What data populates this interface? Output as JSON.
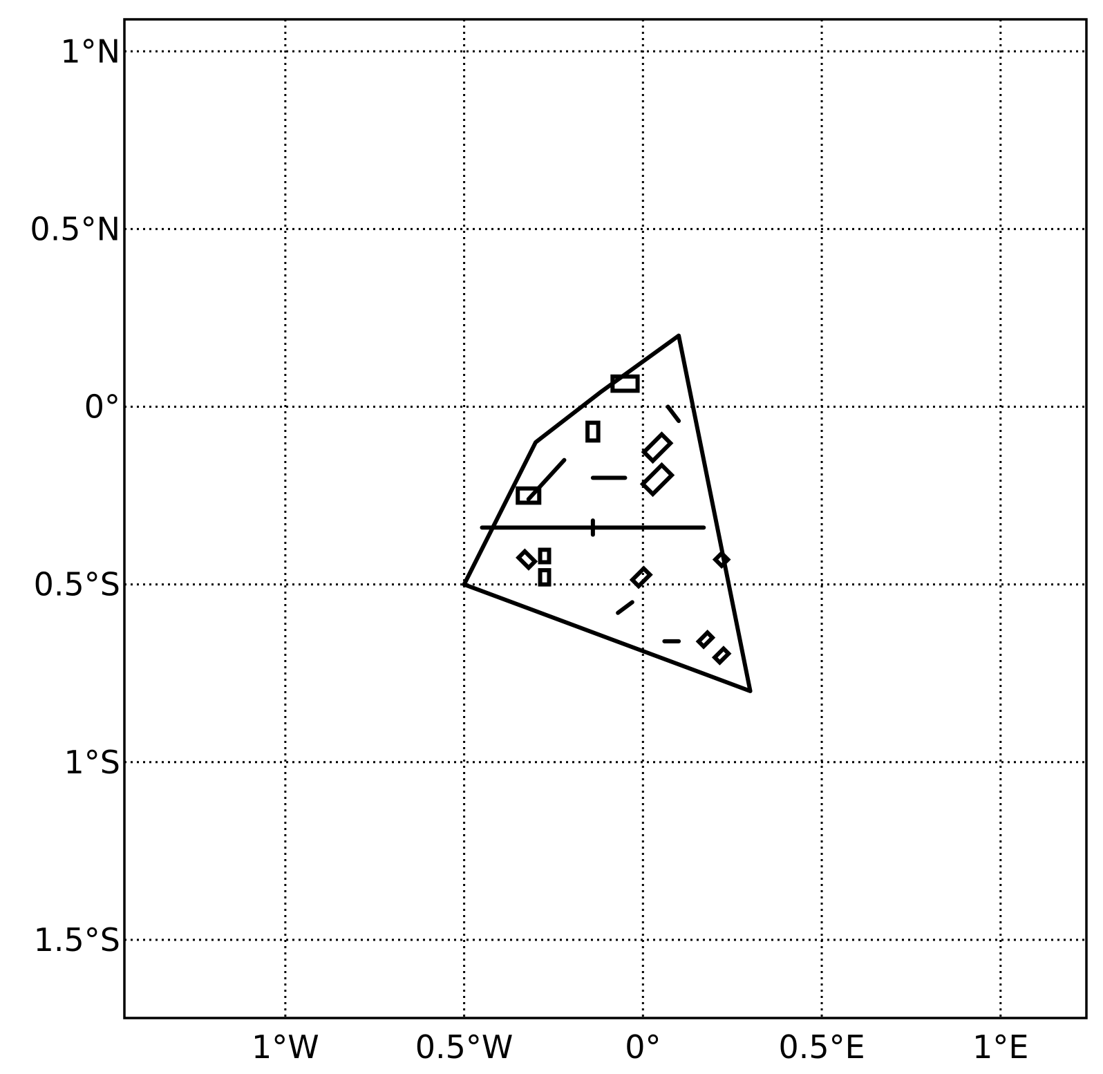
{
  "map": {
    "extent": {
      "lon": [
        -1.45,
        1.24
      ],
      "lat": [
        -1.72,
        1.09
      ]
    },
    "grid": {
      "on": true,
      "style": "dotted"
    },
    "x_ticks": [
      {
        "value": -1.0,
        "label": "1°W"
      },
      {
        "value": -0.5,
        "label": "0.5°W"
      },
      {
        "value": 0.0,
        "label": "0°"
      },
      {
        "value": 0.5,
        "label": "0.5°E"
      },
      {
        "value": 1.0,
        "label": "1°E"
      }
    ],
    "y_ticks": [
      {
        "value": 1.0,
        "label": "1°N"
      },
      {
        "value": 0.5,
        "label": "0.5°N"
      },
      {
        "value": 0.0,
        "label": "0°"
      },
      {
        "value": -0.5,
        "label": "0.5°S"
      },
      {
        "value": -1.0,
        "label": "1°S"
      },
      {
        "value": -1.5,
        "label": "1.5°S"
      }
    ],
    "outline": [
      [
        0.1,
        0.2
      ],
      [
        0.3,
        -0.8
      ],
      [
        -0.5,
        -0.5
      ],
      [
        -0.3,
        -0.1
      ],
      [
        -0.12,
        0.04
      ]
    ],
    "lines": [
      [
        [
          -0.45,
          -0.34
        ],
        [
          0.17,
          -0.34
        ]
      ],
      [
        [
          -0.14,
          -0.32
        ],
        [
          -0.14,
          -0.36
        ]
      ],
      [
        [
          -0.32,
          -0.26
        ],
        [
          -0.22,
          -0.15
        ]
      ],
      [
        [
          -0.14,
          -0.2
        ],
        [
          -0.05,
          -0.2
        ]
      ],
      [
        [
          0.07,
          0.0
        ],
        [
          0.1,
          -0.04
        ]
      ],
      [
        [
          -0.07,
          -0.58
        ],
        [
          -0.03,
          -0.55
        ]
      ],
      [
        [
          0.06,
          -0.66
        ],
        [
          0.1,
          -0.66
        ]
      ]
    ],
    "rects": [
      {
        "center": [
          -0.05,
          0.065
        ],
        "size": [
          0.07,
          0.04
        ],
        "angle": 0
      },
      {
        "center": [
          -0.14,
          -0.07
        ],
        "size": [
          0.03,
          0.05
        ],
        "angle": 0
      },
      {
        "center": [
          -0.32,
          -0.25
        ],
        "size": [
          0.06,
          0.04
        ],
        "angle": 0
      },
      {
        "center": [
          -0.275,
          -0.42
        ],
        "size": [
          0.025,
          0.035
        ],
        "angle": 0
      },
      {
        "center": [
          -0.275,
          -0.48
        ],
        "size": [
          0.025,
          0.04
        ],
        "angle": 0
      },
      {
        "center": [
          0.04,
          -0.115
        ],
        "size": [
          0.07,
          0.035
        ],
        "angle": 45
      },
      {
        "center": [
          0.04,
          -0.205
        ],
        "size": [
          0.075,
          0.04
        ],
        "angle": 45
      },
      {
        "center": [
          -0.325,
          -0.43
        ],
        "size": [
          0.04,
          0.025
        ],
        "angle": -45
      },
      {
        "center": [
          -0.005,
          -0.48
        ],
        "size": [
          0.045,
          0.025
        ],
        "angle": 45
      },
      {
        "center": [
          0.22,
          -0.43
        ],
        "size": [
          0.025,
          0.025
        ],
        "angle": 45
      },
      {
        "center": [
          0.175,
          -0.655
        ],
        "size": [
          0.035,
          0.02
        ],
        "angle": 45
      },
      {
        "center": [
          0.22,
          -0.7
        ],
        "size": [
          0.035,
          0.02
        ],
        "angle": 45
      }
    ]
  }
}
